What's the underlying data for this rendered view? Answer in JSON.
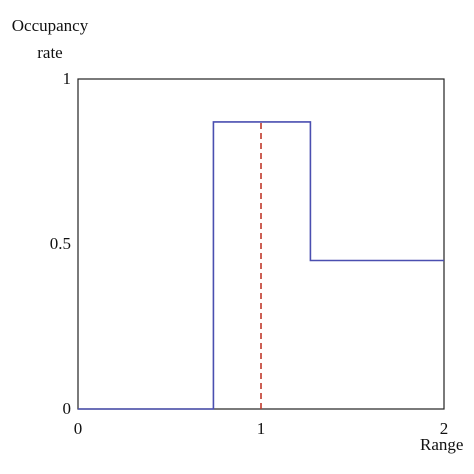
{
  "chart_data": {
    "type": "line",
    "title": "",
    "ylabel_line1": "Occupancy",
    "ylabel_line2": "rate",
    "xlabel": "Range",
    "xlim": [
      0,
      2
    ],
    "ylim": [
      0,
      1
    ],
    "xticks": [
      {
        "value": 0,
        "label": "0"
      },
      {
        "value": 1,
        "label": "1"
      },
      {
        "value": 2,
        "label": "2"
      }
    ],
    "yticks": [
      {
        "value": 0,
        "label": "0"
      },
      {
        "value": 0.5,
        "label": "0.5"
      },
      {
        "value": 1,
        "label": "1"
      }
    ],
    "grid": false,
    "series": [
      {
        "style": "solid step",
        "color": "#4a4fb0",
        "points": [
          [
            0,
            0
          ],
          [
            0.74,
            0
          ],
          [
            0.74,
            0.87
          ],
          [
            1.27,
            0.87
          ],
          [
            1.27,
            0.45
          ],
          [
            2,
            0.45
          ]
        ]
      },
      {
        "style": "dashed vertical",
        "color": "#c0392b",
        "points": [
          [
            1.0,
            0
          ],
          [
            1.0,
            0.87
          ]
        ]
      }
    ]
  }
}
